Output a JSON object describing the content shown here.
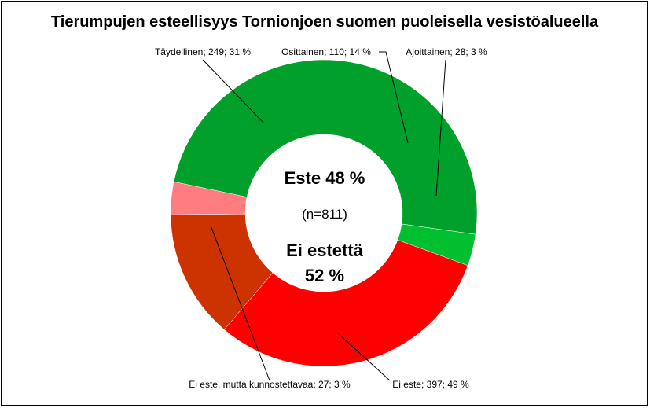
{
  "chart_data": {
    "type": "pie",
    "title": "Tierumpujen esteellisyys Tornionjoen suomen puoleisella vesistöalueella",
    "slices": [
      {
        "name": "Täydellinen",
        "value": 249,
        "percent": 31,
        "label": "Täydellinen; 249; 31 %",
        "color": "#ff0000"
      },
      {
        "name": "Osittainen",
        "value": 110,
        "percent": 14,
        "label": "Osittainen; 110; 14 %",
        "color": "#cc3300"
      },
      {
        "name": "Ajoittainen",
        "value": 28,
        "percent": 3,
        "label": "Ajoittainen; 28; 3 %",
        "color": "#ff7c80"
      },
      {
        "name": "Ei este",
        "value": 397,
        "percent": 49,
        "label": "Ei este; 397; 49 %",
        "color": "#00a02a"
      },
      {
        "name": "Ei este, mutta kunnostettavaa",
        "value": 27,
        "percent": 3,
        "label": "Ei este, mutta kunnostettavaa; 27; 3 %",
        "color": "#00c030"
      }
    ],
    "center": {
      "line1": "Este 48 %",
      "line2": "(n=811)",
      "line3": "Ei estettä",
      "line4": "52 %"
    }
  }
}
